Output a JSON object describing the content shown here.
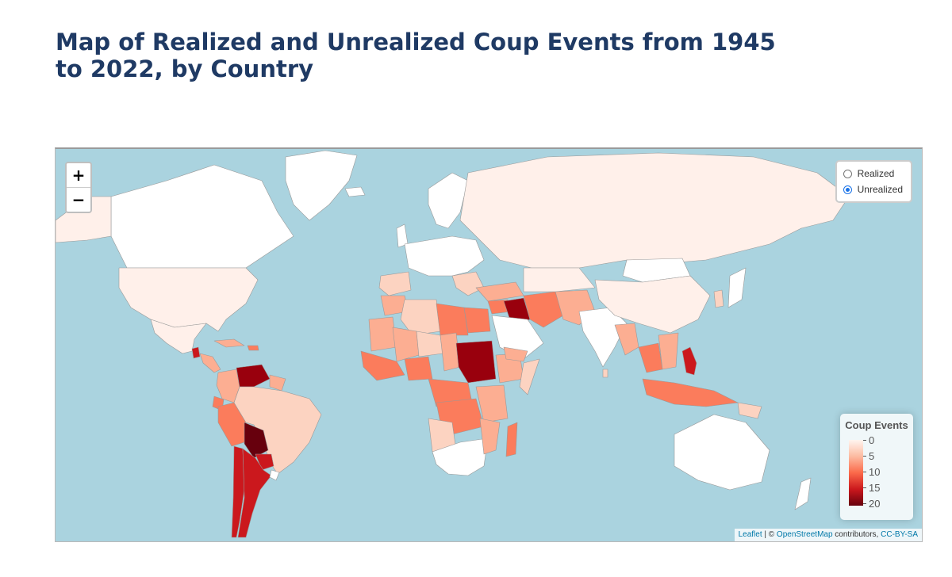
{
  "page": {
    "title": "Map of Realized and Unrealized Coup Events from 1945 to 2022, by Country"
  },
  "map": {
    "zoom_in_label": "+",
    "zoom_out_label": "−",
    "layers": [
      {
        "label": "Realized",
        "checked": false
      },
      {
        "label": "Unrealized",
        "checked": true
      }
    ],
    "legend": {
      "title": "Coup Events",
      "ticks": [
        "0",
        "5",
        "10",
        "15",
        "20"
      ],
      "color_low": "#fff5f0",
      "color_high": "#67000d"
    },
    "attribution": {
      "leaflet": "Leaflet",
      "sep": " | © ",
      "osm": "OpenStreetMap",
      "contrib": " contributors, ",
      "license": "CC-BY-SA"
    },
    "colors": {
      "water": "#aad3df",
      "land_none": "#ffffff",
      "c0": "#fff0ea",
      "c1": "#fcd3c1",
      "c2": "#fcae92",
      "c3": "#fb7c5c",
      "c4": "#ef3b2c",
      "c5": "#cb181d",
      "c6": "#99000d",
      "c7": "#67000d"
    }
  }
}
